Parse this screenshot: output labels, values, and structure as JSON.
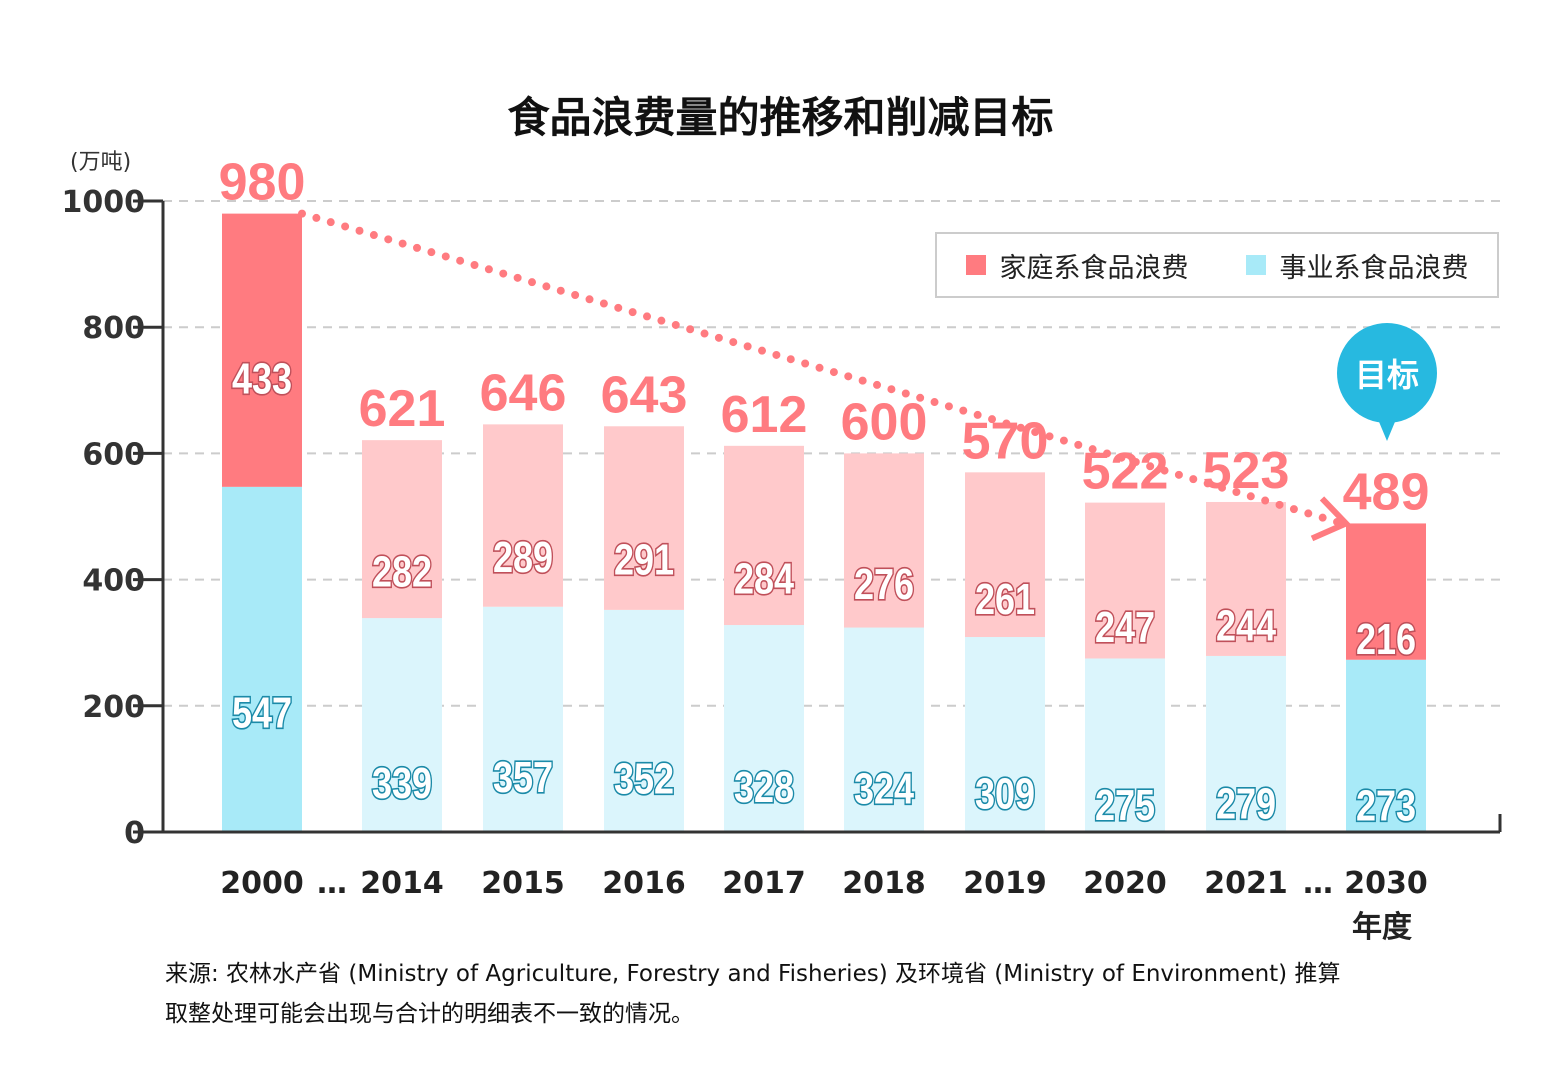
{
  "chart_data": {
    "type": "bar",
    "stacked": true,
    "title": "食品浪费量的推移和削减目标",
    "ylabel": "(万吨)",
    "xlabel_unit": "年度",
    "ylim": [
      0,
      1000
    ],
    "yticks": [
      0,
      200,
      400,
      600,
      800,
      1000
    ],
    "grid": true,
    "legend_position": "top-right",
    "categories": [
      "2000",
      "2014",
      "2015",
      "2016",
      "2017",
      "2018",
      "2019",
      "2020",
      "2021",
      "2030"
    ],
    "gap_marker": "…",
    "series": [
      {
        "name": "事业系食品浪费",
        "values": [
          547,
          339,
          357,
          352,
          328,
          324,
          309,
          275,
          279,
          273
        ],
        "color": "#a8eaf8",
        "light_color": "#dbf5fc",
        "label_color": "#1b8aa8"
      },
      {
        "name": "家庭系食品浪费",
        "values": [
          433,
          282,
          289,
          291,
          284,
          276,
          261,
          247,
          244,
          216
        ],
        "color": "#ff7b80",
        "light_color": "#ffc9cb",
        "label_color": "#c0505a"
      }
    ],
    "totals": [
      980,
      621,
      646,
      643,
      612,
      600,
      570,
      522,
      523,
      489
    ],
    "highlight_categories": [
      "2000",
      "2030"
    ],
    "target_label": "目标",
    "trend": {
      "from": "2000",
      "to": "2030",
      "style": "dotted-arrow"
    }
  },
  "note_lines": [
    "来源: 农林水产省 (Ministry of Agriculture, Forestry and Fisheries) 及环境省 (Ministry of Environment) 推算",
    "取整处理可能会出现与合计的明细表不一致的情况。"
  ]
}
